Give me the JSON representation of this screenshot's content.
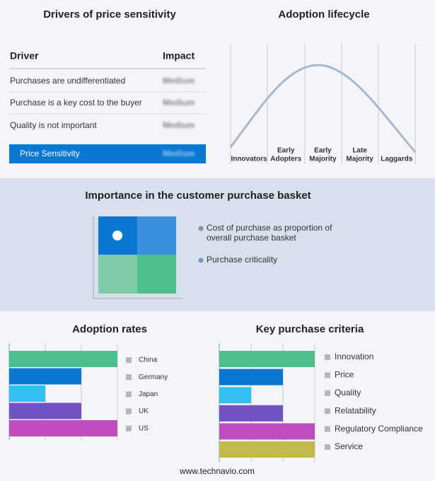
{
  "drivers": {
    "title": "Drivers of price sensitivity",
    "header": [
      "Driver",
      "Impact"
    ],
    "rows": [
      [
        "Purchases are undifferentiated",
        "Medium"
      ],
      [
        "Purchase is a key cost to the buyer",
        "Medium"
      ],
      [
        "Quality is not important",
        "Medium"
      ]
    ],
    "total": [
      "Price Sensitivity",
      "Medium"
    ]
  },
  "lifecycle": {
    "title": "Adoption lifecycle",
    "stages": [
      [
        "Innovators"
      ],
      [
        "Early",
        "Adopters"
      ],
      [
        "Early",
        "Majority"
      ],
      [
        "Late",
        "Majority"
      ],
      [
        "Laggards"
      ]
    ]
  },
  "basket": {
    "title": "Importance in the customer purchase basket",
    "legend": [
      [
        "Cost of purchase as proportion of",
        "overall purchase basket"
      ],
      [
        "Purchase criticality"
      ]
    ]
  },
  "chart_data": [
    {
      "type": "bar",
      "title": "Adoption rates",
      "categories": [
        "China",
        "Germany",
        "Japan",
        "UK",
        "US"
      ],
      "values": [
        3,
        2,
        1,
        2,
        3
      ],
      "colors": [
        "#4cbf8c",
        "#0a77d0",
        "#33bff0",
        "#7352c4",
        "#c04dc0"
      ],
      "xlim": [
        0,
        3
      ],
      "xticks": [
        0,
        1,
        2,
        3
      ],
      "grid": true
    },
    {
      "type": "bar",
      "title": "Key purchase criteria",
      "categories": [
        "Innovation",
        "Price",
        "Quality",
        "Relatability",
        "Regulatory Compliance",
        "Service"
      ],
      "values": [
        3,
        2,
        1,
        2,
        3,
        3
      ],
      "colors": [
        "#4cbf8c",
        "#0a77d0",
        "#33bff0",
        "#7352c4",
        "#c04dc0",
        "#c2b94c"
      ],
      "xlim": [
        0,
        3
      ],
      "xticks": [
        0,
        1,
        2,
        3
      ],
      "grid": true
    }
  ],
  "footer": "www.technavio.com"
}
